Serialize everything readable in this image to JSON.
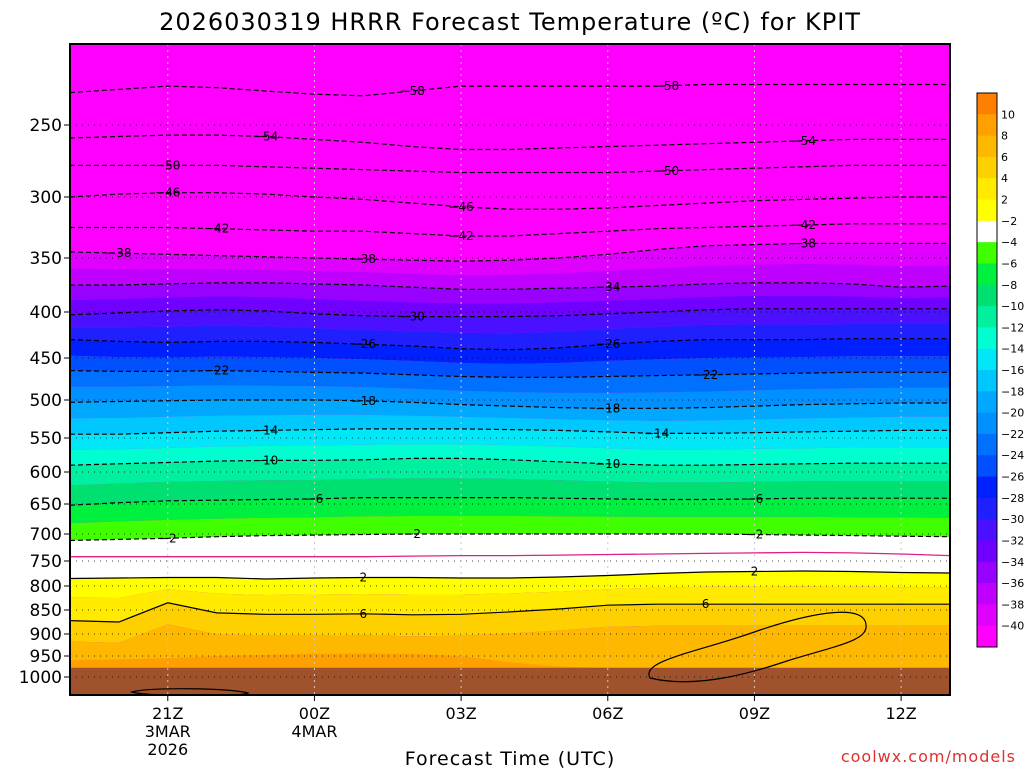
{
  "chart_data": {
    "type": "heatmap",
    "title": "2026030319 HRRR Forecast Temperature (ºC) for KPIT",
    "xlabel": "Forecast Time (UTC)",
    "credit": "coolwx.com/models",
    "x_ticks": [
      {
        "label": "21Z",
        "sub": [
          "3MAR",
          "2026"
        ],
        "hours": 2
      },
      {
        "label": "00Z",
        "sub": [
          "4MAR"
        ],
        "hours": 5
      },
      {
        "label": "03Z",
        "sub": [],
        "hours": 8
      },
      {
        "label": "06Z",
        "sub": [],
        "hours": 11
      },
      {
        "label": "09Z",
        "sub": [],
        "hours": 14
      },
      {
        "label": "12Z",
        "sub": [],
        "hours": 17
      }
    ],
    "xlim": [
      0,
      18
    ],
    "y_ticks": [
      250,
      300,
      350,
      400,
      450,
      500,
      550,
      600,
      650,
      700,
      750,
      800,
      850,
      900,
      950,
      1000
    ],
    "ylim": [
      1025,
      200
    ],
    "colorbar": {
      "ticks": [
        10,
        8,
        6,
        4,
        2,
        -2,
        -4,
        -6,
        -8,
        -10,
        -12,
        -14,
        -16,
        -18,
        -20,
        -22,
        -24,
        -26,
        -28,
        -30,
        -32,
        -34,
        -36,
        -38,
        -40
      ],
      "colors": [
        "#ff8000",
        "#ffa000",
        "#ffb800",
        "#ffd000",
        "#ffea00",
        "#ffff00",
        "#ffffff",
        "#40ff00",
        "#00f040",
        "#00e070",
        "#00f0a0",
        "#00ffd0",
        "#00e8f8",
        "#00c8ff",
        "#00a8ff",
        "#0090ff",
        "#0070ff",
        "#0050ff",
        "#0020ff",
        "#2020ff",
        "#4a10ff",
        "#7000ff",
        "#9800ff",
        "#c000ff",
        "#e000ff",
        "#ff00ff"
      ]
    },
    "ground_level_hpa": 978,
    "contours": [
      {
        "value": -58,
        "label": "58",
        "levels": [
          230,
          228,
          226,
          227,
          229,
          231,
          232,
          229,
          226,
          226,
          226,
          226,
          226,
          225,
          225,
          225,
          225,
          225,
          225
        ],
        "labels_at": [
          7,
          12.2
        ]
      },
      {
        "value": -54,
        "label": "54",
        "levels": [
          259,
          258,
          257,
          257,
          258,
          260,
          262,
          265,
          267,
          267,
          266,
          265,
          264,
          263,
          262,
          261,
          260,
          260,
          260
        ],
        "labels_at": [
          4,
          15
        ]
      },
      {
        "value": -50,
        "label": "50",
        "levels": [
          278,
          278,
          278,
          278,
          279,
          280,
          281,
          282,
          283,
          283,
          283,
          283,
          282,
          281,
          280,
          279,
          278,
          278,
          278
        ],
        "labels_at": [
          2,
          12.2
        ]
      },
      {
        "value": -46,
        "label": "46",
        "levels": [
          300,
          298,
          297,
          297,
          298,
          300,
          302,
          305,
          308,
          310,
          310,
          309,
          307,
          305,
          303,
          302,
          301,
          300,
          300
        ],
        "labels_at": [
          2,
          8
        ]
      },
      {
        "value": -42,
        "label": "42",
        "levels": [
          325,
          325,
          325,
          326,
          327,
          328,
          328,
          330,
          332,
          332,
          330,
          328,
          326,
          325,
          324,
          323,
          322,
          322,
          322
        ],
        "labels_at": [
          3,
          8,
          15
        ]
      },
      {
        "value": -38,
        "label": "38",
        "levels": [
          345,
          346,
          347,
          348,
          349,
          350,
          351,
          352,
          353,
          352,
          350,
          347,
          343,
          340,
          339,
          338,
          338,
          338,
          338
        ],
        "labels_at": [
          1,
          6,
          15
        ]
      },
      {
        "value": -34,
        "label": "34",
        "levels": [
          375,
          375,
          374,
          373,
          373,
          374,
          375,
          377,
          379,
          379,
          378,
          377,
          376,
          374,
          373,
          373,
          374,
          377,
          376
        ],
        "labels_at": [
          11
        ]
      },
      {
        "value": -30,
        "label": "30",
        "levels": [
          403,
          401,
          399,
          398,
          399,
          402,
          404,
          405,
          405,
          405,
          404,
          402,
          400,
          398,
          397,
          397,
          397,
          397,
          397
        ],
        "labels_at": [
          7
        ]
      },
      {
        "value": -26,
        "label": "26",
        "levels": [
          430,
          432,
          433,
          432,
          432,
          433,
          435,
          437,
          440,
          441,
          439,
          435,
          432,
          430,
          430,
          430,
          429,
          429,
          429
        ],
        "labels_at": [
          6,
          11
        ]
      },
      {
        "value": -22,
        "label": "22",
        "levels": [
          465,
          466,
          466,
          465,
          466,
          467,
          468,
          470,
          472,
          473,
          473,
          472,
          471,
          470,
          469,
          468,
          467,
          467,
          467
        ],
        "labels_at": [
          3,
          13
        ]
      },
      {
        "value": -18,
        "label": "18",
        "levels": [
          503,
          502,
          501,
          500,
          500,
          500,
          501,
          503,
          506,
          508,
          510,
          511,
          511,
          510,
          508,
          506,
          505,
          504,
          504
        ],
        "labels_at": [
          6,
          11
        ]
      },
      {
        "value": -14,
        "label": "14",
        "levels": [
          545,
          545,
          543,
          541,
          540,
          539,
          538,
          538,
          538,
          539,
          540,
          542,
          544,
          544,
          543,
          542,
          541,
          540,
          540
        ],
        "labels_at": [
          4,
          12
        ]
      },
      {
        "value": -10,
        "label": "10",
        "levels": [
          590,
          588,
          586,
          584,
          583,
          583,
          582,
          580,
          580,
          582,
          585,
          588,
          590,
          590,
          589,
          588,
          587,
          587,
          587
        ],
        "labels_at": [
          4,
          11
        ]
      },
      {
        "value": -6,
        "label": "6",
        "levels": [
          652,
          648,
          645,
          644,
          643,
          642,
          640,
          640,
          640,
          640,
          641,
          642,
          643,
          643,
          642,
          641,
          641,
          641,
          641
        ],
        "labels_at": [
          5,
          14
        ]
      },
      {
        "value": -2,
        "label": "2",
        "levels": [
          712,
          710,
          708,
          705,
          703,
          702,
          701,
          700,
          700,
          700,
          700,
          700,
          700,
          700,
          701,
          702,
          703,
          704,
          705
        ],
        "labels_at": [
          2,
          7,
          14
        ]
      }
    ],
    "contours_warm": [
      {
        "value": 2,
        "label": "2",
        "levels": [
          785,
          784,
          783,
          783,
          786,
          784,
          783,
          783,
          784,
          784,
          782,
          779,
          775,
          772,
          771,
          770,
          771,
          773,
          774
        ],
        "labels_at": [
          6,
          14
        ]
      },
      {
        "value": 6,
        "label": "6",
        "levels": [
          872,
          875,
          835,
          856,
          859,
          859,
          858,
          860,
          859,
          854,
          848,
          840,
          838,
          838,
          838,
          838,
          838,
          838,
          838
        ],
        "labels_at": [
          6,
          13
        ]
      }
    ],
    "freezing_line": {
      "value": 0,
      "levels": [
        742,
        742,
        742,
        742,
        742,
        742,
        742,
        741,
        740,
        740,
        739,
        738,
        737,
        736,
        735,
        734,
        735,
        737,
        740
      ]
    }
  }
}
